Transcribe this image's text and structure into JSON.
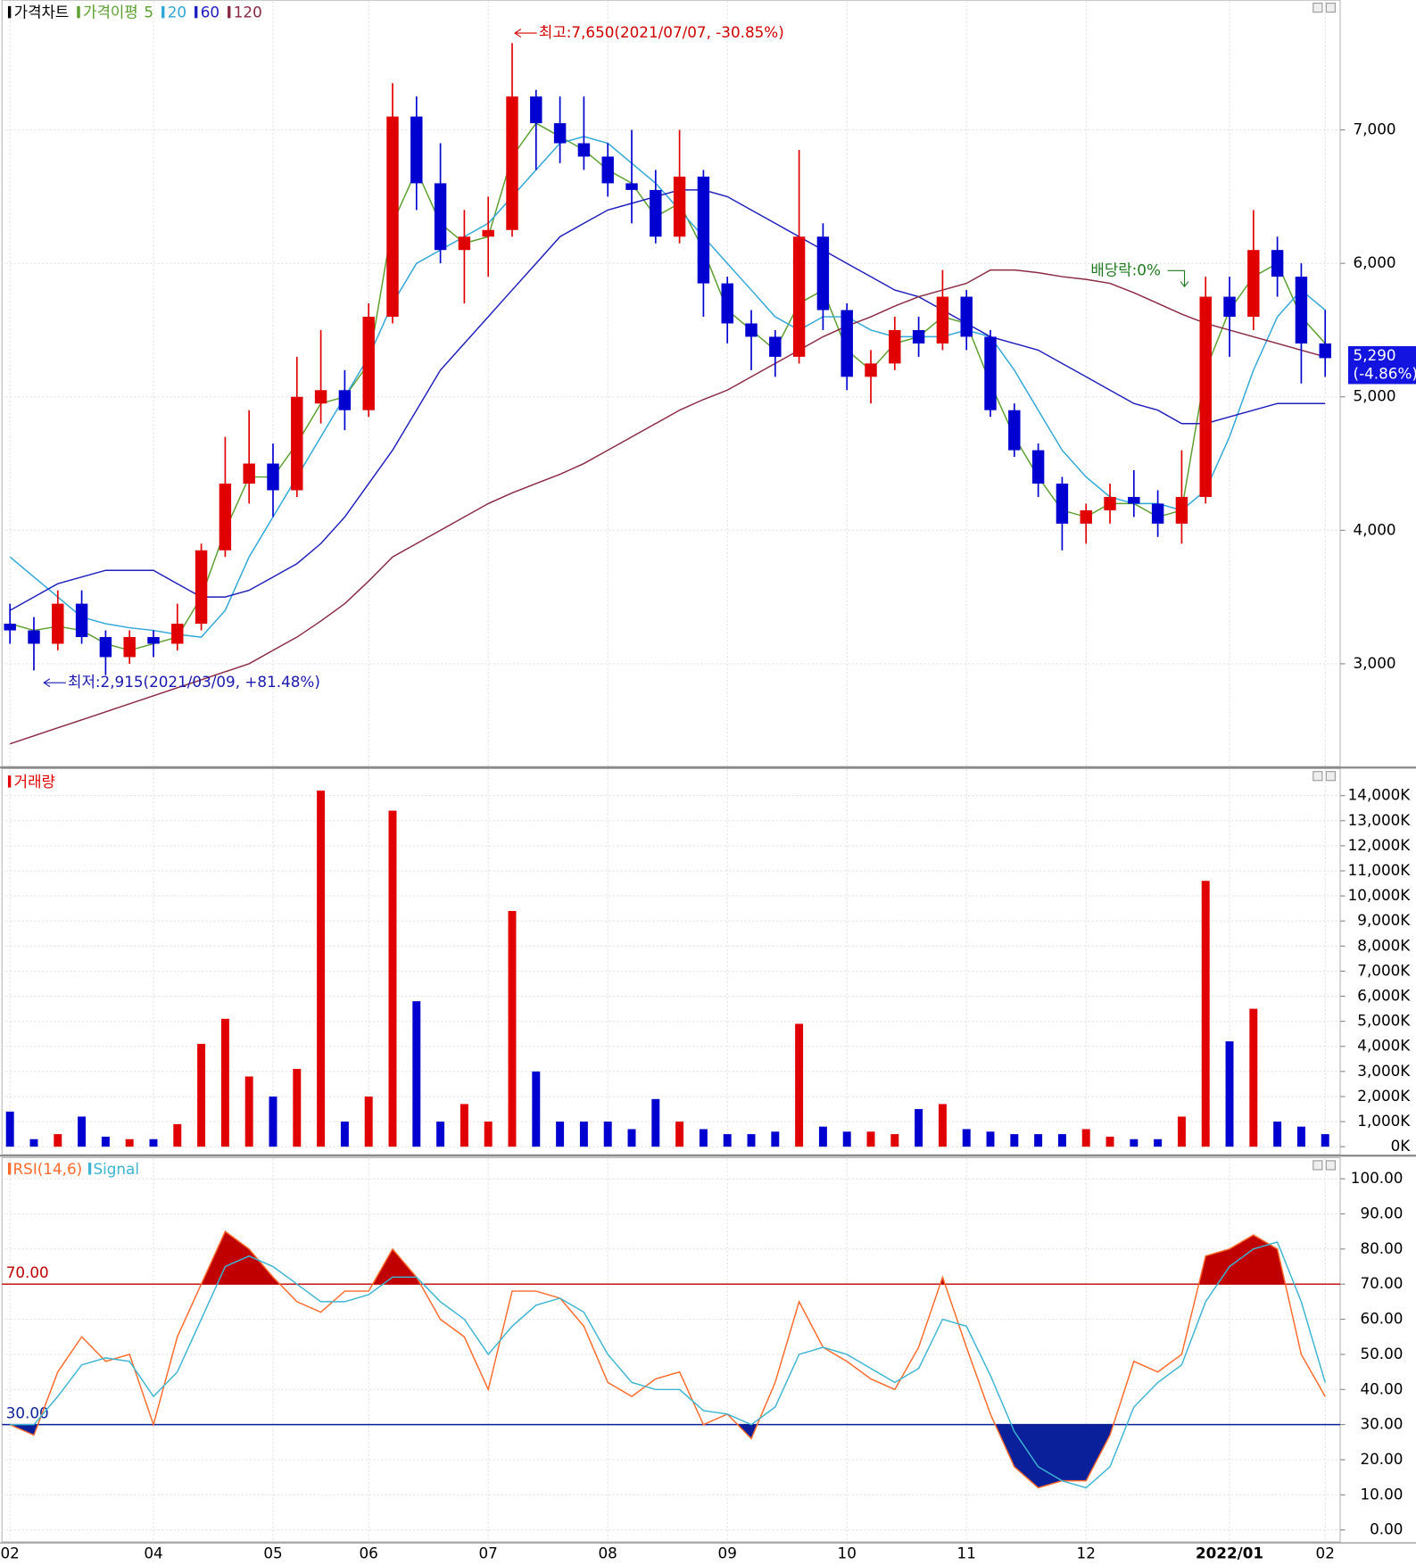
{
  "chart_data": [
    {
      "type": "candlestick",
      "title": "가격차트",
      "ma_label": "가격이평",
      "up_color": "#e00000",
      "down_color": "#0000d0",
      "open": [
        3300,
        3250,
        3150,
        3450,
        3200,
        3050,
        3200,
        3150,
        3300,
        3850,
        4350,
        4500,
        4300,
        4950,
        5050,
        4900,
        5600,
        7100,
        6600,
        6100,
        6200,
        6250,
        7250,
        7050,
        6900,
        6800,
        6600,
        6550,
        6200,
        6650,
        5850,
        5550,
        5450,
        5300,
        6200,
        5650,
        5150,
        5250,
        5500,
        5400,
        5750,
        5450,
        4900,
        4600,
        4350,
        4050,
        4150,
        4250,
        4200,
        4050,
        4250,
        5750,
        5600,
        6100,
        5900,
        5400
      ],
      "high": [
        3450,
        3350,
        3550,
        3550,
        3250,
        3250,
        3250,
        3450,
        3900,
        4700,
        4900,
        4650,
        5300,
        5500,
        5200,
        5700,
        7350,
        7250,
        6900,
        6400,
        6500,
        7650,
        7300,
        7250,
        7250,
        6900,
        7000,
        6700,
        7000,
        6700,
        5900,
        5650,
        5500,
        6850,
        6300,
        5700,
        5350,
        5600,
        5600,
        5950,
        5800,
        5500,
        4950,
        4650,
        4400,
        4200,
        4350,
        4450,
        4300,
        4600,
        5900,
        5900,
        6400,
        6200,
        6000,
        5650
      ],
      "low": [
        3150,
        2950,
        3100,
        3150,
        2915,
        3000,
        3050,
        3100,
        3250,
        3800,
        4200,
        4100,
        4250,
        4800,
        4750,
        4850,
        5550,
        6400,
        6000,
        5700,
        5900,
        6200,
        6700,
        6750,
        6700,
        6500,
        6300,
        6150,
        6150,
        5600,
        5400,
        5200,
        5150,
        5250,
        5500,
        5050,
        4950,
        5200,
        5300,
        5350,
        5350,
        4850,
        4550,
        4250,
        3850,
        3900,
        4050,
        4100,
        3950,
        3900,
        4200,
        5300,
        5500,
        5750,
        5100,
        5150
      ],
      "close": [
        3250,
        3150,
        3450,
        3200,
        3050,
        3200,
        3150,
        3300,
        3850,
        4350,
        4500,
        4300,
        5000,
        5050,
        4900,
        5600,
        7100,
        6600,
        6100,
        6200,
        6250,
        7250,
        7050,
        6900,
        6800,
        6600,
        6550,
        6200,
        6650,
        5850,
        5550,
        5450,
        5300,
        6200,
        5650,
        5150,
        5250,
        5500,
        5400,
        5750,
        5450,
        4900,
        4600,
        4350,
        4050,
        4150,
        4250,
        4200,
        4050,
        4250,
        5750,
        5600,
        6100,
        5900,
        5400,
        5290
      ],
      "series": [
        {
          "name": "5",
          "color": "#5a9e2c",
          "values": [
            3300,
            3250,
            3280,
            3250,
            3150,
            3100,
            3150,
            3200,
            3500,
            4000,
            4400,
            4400,
            4650,
            4950,
            5000,
            5250,
            6300,
            6700,
            6300,
            6150,
            6200,
            6800,
            7050,
            6950,
            6850,
            6700,
            6600,
            6350,
            6450,
            6100,
            5650,
            5500,
            5350,
            5700,
            5800,
            5350,
            5200,
            5400,
            5450,
            5600,
            5550,
            5100,
            4700,
            4400,
            4150,
            4100,
            4200,
            4200,
            4100,
            4150,
            5200,
            5650,
            5900,
            6000,
            5600,
            5400
          ]
        },
        {
          "name": "20",
          "color": "#2fa6d8",
          "values": [
            3800,
            3650,
            3500,
            3350,
            3300,
            3270,
            3250,
            3220,
            3200,
            3400,
            3800,
            4100,
            4400,
            4700,
            5000,
            5300,
            5700,
            6000,
            6100,
            6200,
            6300,
            6500,
            6700,
            6900,
            6950,
            6900,
            6750,
            6600,
            6400,
            6200,
            6000,
            5800,
            5600,
            5500,
            5600,
            5600,
            5500,
            5450,
            5450,
            5450,
            5500,
            5450,
            5200,
            4900,
            4600,
            4400,
            4250,
            4200,
            4200,
            4150,
            4300,
            4700,
            5200,
            5600,
            5800,
            5650
          ]
        },
        {
          "name": "60",
          "color": "#1e1ebe",
          "values": [
            3400,
            3500,
            3600,
            3650,
            3700,
            3700,
            3700,
            3600,
            3500,
            3500,
            3550,
            3650,
            3750,
            3900,
            4100,
            4350,
            4600,
            4900,
            5200,
            5400,
            5600,
            5800,
            6000,
            6200,
            6300,
            6400,
            6450,
            6500,
            6550,
            6550,
            6500,
            6400,
            6300,
            6200,
            6100,
            6000,
            5900,
            5800,
            5750,
            5650,
            5550,
            5450,
            5400,
            5350,
            5250,
            5150,
            5050,
            4950,
            4900,
            4800,
            4800,
            4850,
            4900,
            4950,
            4950,
            4950
          ]
        },
        {
          "name": "120",
          "color": "#8b2942",
          "values": [
            2400,
            2460,
            2520,
            2580,
            2640,
            2700,
            2760,
            2820,
            2880,
            2940,
            3000,
            3100,
            3200,
            3320,
            3450,
            3620,
            3800,
            3900,
            4000,
            4100,
            4200,
            4280,
            4350,
            4420,
            4500,
            4600,
            4700,
            4800,
            4900,
            4980,
            5050,
            5150,
            5250,
            5350,
            5450,
            5530,
            5600,
            5680,
            5750,
            5800,
            5850,
            5950,
            5950,
            5930,
            5900,
            5880,
            5850,
            5780,
            5700,
            5620,
            5550,
            5500,
            5450,
            5400,
            5350,
            5300
          ]
        }
      ],
      "ylim": [
        2230,
        7972
      ],
      "yticks": [
        {
          "value": 3000,
          "label": "3,000"
        },
        {
          "value": 4000,
          "label": "4,000"
        },
        {
          "value": 5000,
          "label": "5,000"
        },
        {
          "value": 6000,
          "label": "6,000"
        },
        {
          "value": 7000,
          "label": "7,000"
        }
      ],
      "annotations": [
        {
          "text": "최고:7,650(2021/07/07, -30.85%)",
          "color": "#d00000"
        },
        {
          "text": "최저:2,915(2021/03/09, +81.48%)",
          "color": "#1a1ab0"
        },
        {
          "text": "배당락:0%",
          "color": "#1f7a1f"
        }
      ],
      "last": {
        "value": 5290,
        "label": "5,290",
        "change": "(-4.86%)"
      }
    },
    {
      "type": "bar",
      "title": "거래량",
      "values": [
        1400,
        300,
        500,
        1200,
        400,
        300,
        300,
        900,
        4100,
        5100,
        2800,
        2000,
        3100,
        14200,
        1000,
        2000,
        13400,
        5800,
        1000,
        1700,
        1000,
        9400,
        3000,
        1000,
        1000,
        1000,
        700,
        1900,
        1000,
        700,
        500,
        500,
        600,
        4900,
        800,
        600,
        600,
        500,
        1500,
        1700,
        700,
        600,
        500,
        500,
        500,
        700,
        400,
        300,
        300,
        1200,
        10600,
        4200,
        5500,
        1000,
        800,
        500
      ],
      "ylim": [
        -320,
        15080
      ],
      "yticks": [
        {
          "value": 0,
          "label": "0K"
        },
        {
          "value": 1000,
          "label": "1,000K"
        },
        {
          "value": 2000,
          "label": "2,000K"
        },
        {
          "value": 3000,
          "label": "3,000K"
        },
        {
          "value": 4000,
          "label": "4,000K"
        },
        {
          "value": 5000,
          "label": "5,000K"
        },
        {
          "value": 6000,
          "label": "6,000K"
        },
        {
          "value": 7000,
          "label": "7,000K"
        },
        {
          "value": 8000,
          "label": "8,000K"
        },
        {
          "value": 9000,
          "label": "9,000K"
        },
        {
          "value": 10000,
          "label": "10,000K"
        },
        {
          "value": 11000,
          "label": "11,000K"
        },
        {
          "value": 12000,
          "label": "12,000K"
        },
        {
          "value": 13000,
          "label": "13,000K"
        },
        {
          "value": 14000,
          "label": "14,000K"
        }
      ]
    },
    {
      "type": "line",
      "categories": [
        "02",
        null,
        null,
        null,
        null,
        null,
        "04",
        null,
        null,
        null,
        null,
        "05",
        null,
        null,
        null,
        "06",
        null,
        null,
        null,
        null,
        "07",
        null,
        null,
        null,
        null,
        "08",
        null,
        null,
        null,
        null,
        "09",
        null,
        null,
        null,
        null,
        "10",
        null,
        null,
        null,
        null,
        "11",
        null,
        null,
        null,
        null,
        "12",
        null,
        null,
        null,
        null,
        null,
        "2022/01",
        null,
        null,
        null,
        "02"
      ],
      "series": [
        {
          "name": "RSI(14,6)",
          "color": "#ff6a2a",
          "values": [
            30,
            27,
            45,
            55,
            48,
            50,
            30,
            55,
            70,
            85,
            80,
            72,
            65,
            62,
            68,
            68,
            80,
            72,
            60,
            55,
            40,
            68,
            68,
            66,
            58,
            42,
            38,
            43,
            45,
            30,
            33,
            26,
            42,
            65,
            52,
            48,
            43,
            40,
            52,
            72,
            52,
            33,
            18,
            12,
            14,
            14,
            27,
            48,
            45,
            50,
            78,
            80,
            84,
            80,
            50,
            38
          ]
        },
        {
          "name": "Signal",
          "color": "#3cb4d2",
          "values": [
            30,
            30,
            38,
            47,
            49,
            48,
            38,
            45,
            60,
            75,
            78,
            75,
            70,
            65,
            65,
            67,
            72,
            72,
            65,
            60,
            50,
            58,
            64,
            66,
            62,
            50,
            42,
            40,
            40,
            34,
            33,
            30,
            35,
            50,
            52,
            50,
            46,
            42,
            46,
            60,
            58,
            44,
            28,
            18,
            14,
            12,
            18,
            35,
            42,
            47,
            65,
            75,
            80,
            82,
            65,
            42
          ]
        }
      ],
      "ylim": [
        -3.4,
        106
      ],
      "yticks": [
        {
          "value": 0,
          "label": "0.00"
        },
        {
          "value": 10,
          "label": "10.00"
        },
        {
          "value": 20,
          "label": "20.00"
        },
        {
          "value": 30,
          "label": "30.00"
        },
        {
          "value": 40,
          "label": "40.00"
        },
        {
          "value": 50,
          "label": "50.00"
        },
        {
          "value": 60,
          "label": "60.00"
        },
        {
          "value": 70,
          "label": "70.00"
        },
        {
          "value": 80,
          "label": "80.00"
        },
        {
          "value": 90,
          "label": "90.00"
        },
        {
          "value": 100,
          "label": "100.00"
        }
      ],
      "levels": [
        {
          "value": 70,
          "label": "70.00",
          "color": "#c00000",
          "fill": "above"
        },
        {
          "value": 30,
          "label": "30.00",
          "color": "#0a1f9a",
          "fill": "below"
        }
      ]
    }
  ]
}
